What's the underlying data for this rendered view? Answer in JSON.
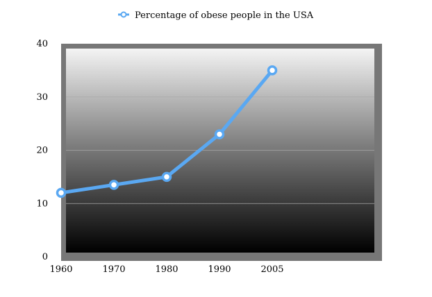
{
  "chart_data": {
    "type": "line",
    "legend": {
      "position": "top-center"
    },
    "categories": [
      "1960",
      "1970",
      "1980",
      "1990",
      "2005"
    ],
    "series": [
      {
        "name": "Percentage of obese people in the USA",
        "values": [
          12,
          13.5,
          15,
          23,
          35
        ]
      }
    ],
    "ylim": [
      0,
      40
    ],
    "yticks": [
      "0",
      "10",
      "20",
      "30",
      "40"
    ],
    "grid": true,
    "colors": {
      "line": "#5aa8f2",
      "marker_fill": "#ffffff",
      "frame": "#777777"
    }
  }
}
